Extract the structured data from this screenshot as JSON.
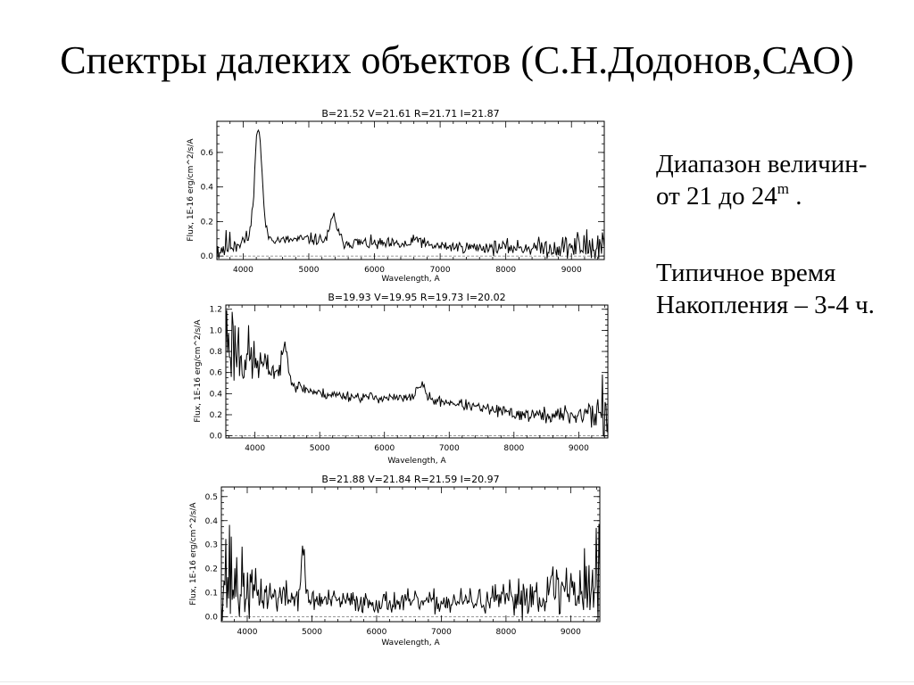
{
  "slide": {
    "title": "Спектры далеких объектов (С.Н.Додонов,САО)",
    "range_text": "Диапазон величин-",
    "range_text_2a": "от 21 до 24",
    "range_sup": "m",
    "range_text_2b": " .",
    "time_text_1": "Типичное время",
    "time_text_2": "Накопления – 3-4 ч."
  },
  "chart_data": [
    {
      "type": "line",
      "title": "B=21.52  V=21.61  R=21.71  I=21.87",
      "xlabel": "Wavelength, A",
      "ylabel": "Flux,  1E-16 erg/cm^2/s/A",
      "xlim": [
        3600,
        9500
      ],
      "ylim": [
        -0.02,
        0.78
      ],
      "xticks": [
        4000,
        5000,
        6000,
        7000,
        8000,
        9000
      ],
      "xtick_labels": [
        "4000",
        "5000",
        "6000",
        "7000",
        "8000",
        "9000"
      ],
      "yticks": [
        0,
        0.2,
        0.4,
        0.6
      ],
      "ytick_labels": [
        "0.0",
        "0.2",
        "0.4",
        "0.6"
      ],
      "zero_line": 0,
      "grid": false,
      "continuum": [
        [
          3600,
          0.04
        ],
        [
          4000,
          0.09
        ],
        [
          4300,
          0.11
        ],
        [
          4600,
          0.09
        ],
        [
          5000,
          0.1
        ],
        [
          5600,
          0.08
        ],
        [
          6000,
          0.07
        ],
        [
          6800,
          0.06
        ],
        [
          7500,
          0.05
        ],
        [
          8000,
          0.05
        ],
        [
          8800,
          0.05
        ],
        [
          9500,
          0.06
        ]
      ],
      "lines": [
        [
          4230,
          0.64,
          55
        ],
        [
          5380,
          0.14,
          50
        ],
        [
          6660,
          0.04,
          60
        ]
      ],
      "noise": [
        [
          3600,
          0.09
        ],
        [
          3900,
          0.05
        ],
        [
          4300,
          0.02
        ],
        [
          5500,
          0.03
        ],
        [
          7500,
          0.025
        ],
        [
          8500,
          0.04
        ],
        [
          9000,
          0.06
        ],
        [
          9500,
          0.13
        ]
      ],
      "seed": 11
    },
    {
      "type": "line",
      "title": "B=19.93  V=19.95  R=19.73  I=20.02",
      "xlabel": "Wavelength, A",
      "ylabel": "Flux,  1E-16 erg/cm^2/s/A",
      "xlim": [
        3550,
        9450
      ],
      "ylim": [
        -0.02,
        1.24
      ],
      "xticks": [
        4000,
        5000,
        6000,
        7000,
        8000,
        9000
      ],
      "xtick_labels": [
        "4000",
        "5000",
        "6000",
        "7000",
        "8000",
        "9000"
      ],
      "yticks": [
        0,
        0.2,
        0.4,
        0.6,
        0.8,
        1.0,
        1.2
      ],
      "ytick_labels": [
        "0.0",
        "0.2",
        "0.4",
        "0.6",
        "0.8",
        "1.0",
        "1.2"
      ],
      "zero_line": 0,
      "grid": false,
      "continuum": [
        [
          3550,
          0.95
        ],
        [
          3800,
          0.78
        ],
        [
          4000,
          0.7
        ],
        [
          4300,
          0.62
        ],
        [
          4600,
          0.48
        ],
        [
          5000,
          0.4
        ],
        [
          5600,
          0.37
        ],
        [
          6000,
          0.36
        ],
        [
          6400,
          0.35
        ],
        [
          7000,
          0.32
        ],
        [
          7500,
          0.26
        ],
        [
          8000,
          0.21
        ],
        [
          8500,
          0.19
        ],
        [
          9000,
          0.2
        ],
        [
          9450,
          0.24
        ]
      ],
      "lines": [
        [
          4470,
          0.32,
          45
        ],
        [
          6560,
          0.14,
          70
        ]
      ],
      "noise": [
        [
          3550,
          0.35
        ],
        [
          3800,
          0.28
        ],
        [
          4100,
          0.12
        ],
        [
          4500,
          0.05
        ],
        [
          5000,
          0.04
        ],
        [
          6500,
          0.035
        ],
        [
          7500,
          0.04
        ],
        [
          8500,
          0.06
        ],
        [
          9100,
          0.09
        ],
        [
          9450,
          0.3
        ]
      ],
      "seed": 23
    },
    {
      "type": "line",
      "title": "B=21.88  V=21.84  R=21.59  I=20.97",
      "xlabel": "Wavelength, A",
      "ylabel": "Flux,  1E-16 erg/cm^2/s/A",
      "xlim": [
        3600,
        9450
      ],
      "ylim": [
        -0.02,
        0.54
      ],
      "xticks": [
        4000,
        5000,
        6000,
        7000,
        8000,
        9000
      ],
      "xtick_labels": [
        "4000",
        "5000",
        "6000",
        "7000",
        "8000",
        "9000"
      ],
      "yticks": [
        0,
        0.1,
        0.2,
        0.3,
        0.4,
        0.5
      ],
      "ytick_labels": [
        "0.0",
        "0.1",
        "0.2",
        "0.3",
        "0.4",
        "0.5"
      ],
      "zero_line": 0,
      "grid": false,
      "continuum": [
        [
          3600,
          0.2
        ],
        [
          3900,
          0.12
        ],
        [
          4300,
          0.09
        ],
        [
          5000,
          0.07
        ],
        [
          6000,
          0.06
        ],
        [
          7000,
          0.06
        ],
        [
          8000,
          0.07
        ],
        [
          8500,
          0.1
        ],
        [
          9000,
          0.12
        ],
        [
          9450,
          0.15
        ]
      ],
      "lines": [
        [
          4860,
          0.2,
          30
        ]
      ],
      "noise": [
        [
          3600,
          0.25
        ],
        [
          3800,
          0.15
        ],
        [
          4100,
          0.07
        ],
        [
          5000,
          0.035
        ],
        [
          7000,
          0.035
        ],
        [
          8000,
          0.05
        ],
        [
          8700,
          0.09
        ],
        [
          9200,
          0.12
        ],
        [
          9450,
          0.25
        ]
      ],
      "seed": 37
    }
  ]
}
